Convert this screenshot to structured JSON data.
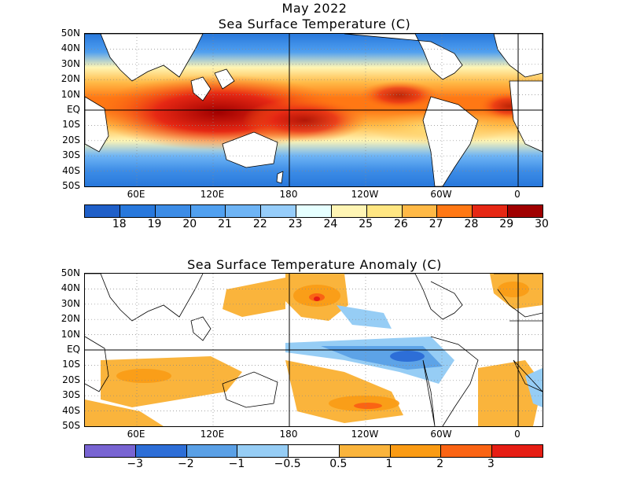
{
  "header": {
    "date_label": "May 2022"
  },
  "sst_panel": {
    "title": "Sea Surface Temperature (C)",
    "lat_labels": [
      "50N",
      "40N",
      "30N",
      "20N",
      "10N",
      "EQ",
      "10S",
      "20S",
      "30S",
      "40S",
      "50S"
    ],
    "lon_labels": [
      "60E",
      "120E",
      "180",
      "120W",
      "60W",
      "0"
    ],
    "colorbar": {
      "colors": [
        "#1f5fc8",
        "#2878dc",
        "#3c8ce6",
        "#50a0f0",
        "#6eb4f5",
        "#96cdfa",
        "#e6ffff",
        "#fff5b4",
        "#ffe682",
        "#ffb946",
        "#ff7814",
        "#e62814",
        "#a00000"
      ],
      "labels": [
        "18",
        "19",
        "20",
        "21",
        "22",
        "23",
        "24",
        "25",
        "26",
        "27",
        "28",
        "29",
        "30"
      ]
    }
  },
  "anomaly_panel": {
    "title": "Sea Surface Temperature Anomaly (C)",
    "lat_labels": [
      "50N",
      "40N",
      "30N",
      "20N",
      "10N",
      "EQ",
      "10S",
      "20S",
      "30S",
      "40S",
      "50S"
    ],
    "lon_labels": [
      "60E",
      "120E",
      "180",
      "120W",
      "60W",
      "0"
    ],
    "colorbar": {
      "colors": [
        "#7864d2",
        "#2d6ed7",
        "#5aa0e6",
        "#96cdf5",
        "#ffffff",
        "#fab43c",
        "#fa9b14",
        "#fa6414",
        "#e61e14"
      ],
      "labels": [
        "−3",
        "−2",
        "−1",
        "−0.5",
        "0.5",
        "1",
        "2",
        "3"
      ]
    }
  },
  "colors": {
    "land_outline": "#000000",
    "grid": "#888888",
    "ocean_cold": "#1f5fc8",
    "ocean_hot": "#c81e0a"
  }
}
